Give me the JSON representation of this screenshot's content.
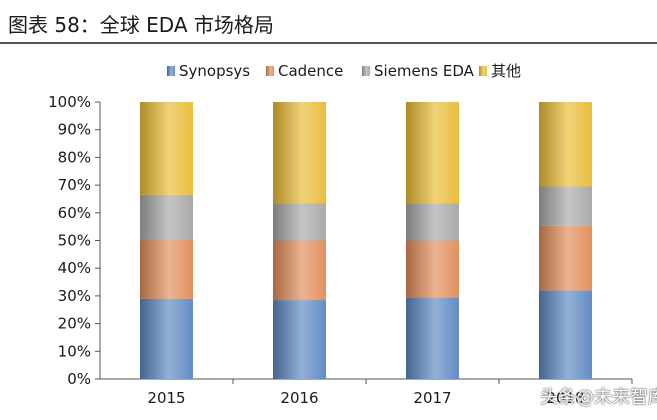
{
  "title": "图表 58：全球 EDA 市场格局",
  "watermark": "头条@未来智库",
  "chart_data": {
    "type": "bar",
    "stacked": true,
    "categories": [
      "2015",
      "2016",
      "2017",
      "2018"
    ],
    "series": [
      {
        "name": "Synopsys",
        "color": "#5b86c0",
        "values": [
          29,
          28.5,
          29.5,
          32
        ]
      },
      {
        "name": "Cadence",
        "color": "#e08a55",
        "values": [
          21.5,
          21.5,
          20.5,
          23.5
        ]
      },
      {
        "name": "Siemens EDA",
        "color": "#a6a6a6",
        "values": [
          16,
          13.5,
          13.5,
          14
        ]
      },
      {
        "name": "其他",
        "color": "#e8b932",
        "values": [
          33.5,
          36.5,
          36.5,
          30.5
        ]
      }
    ],
    "ylim": [
      0,
      100
    ],
    "yticks": [
      "0%",
      "10%",
      "20%",
      "30%",
      "40%",
      "50%",
      "60%",
      "70%",
      "80%",
      "90%",
      "100%"
    ],
    "legend_position": "top"
  }
}
